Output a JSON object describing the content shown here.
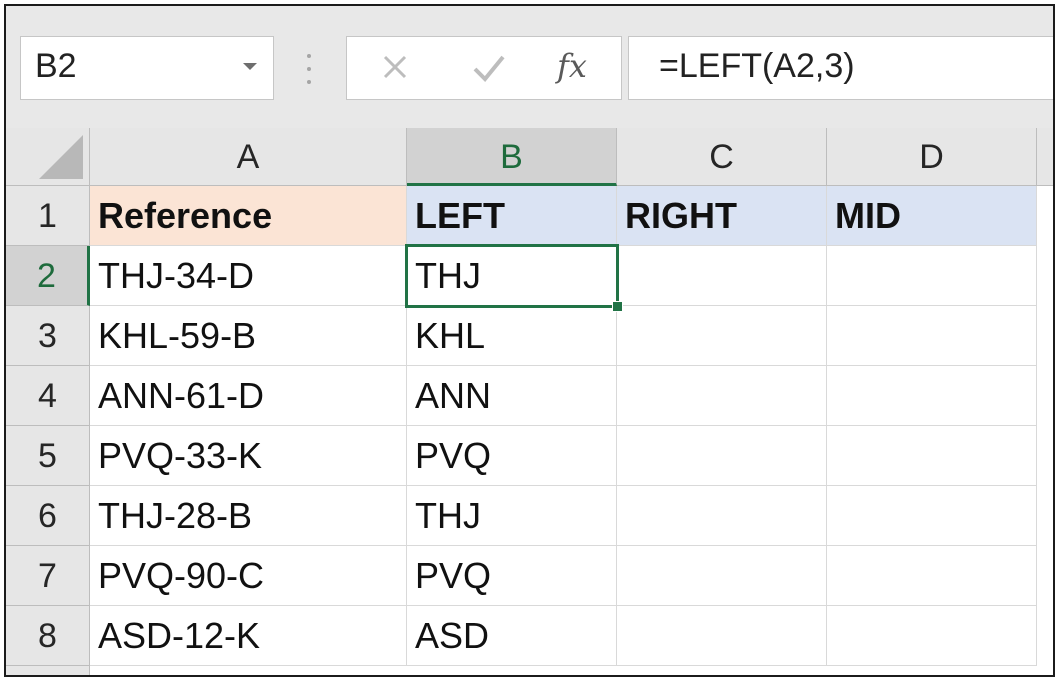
{
  "name_box": {
    "value": "B2"
  },
  "formula_bar": {
    "fx_label": "fx",
    "formula": "=LEFT(A2,3)"
  },
  "columns": [
    "A",
    "B",
    "C",
    "D"
  ],
  "selected_cell": "B2",
  "rows": [
    {
      "row": "1",
      "cells": [
        "Reference",
        "LEFT",
        "RIGHT",
        "MID"
      ]
    },
    {
      "row": "2",
      "cells": [
        "THJ-34-D",
        "THJ",
        "",
        ""
      ]
    },
    {
      "row": "3",
      "cells": [
        "KHL-59-B",
        "KHL",
        "",
        ""
      ]
    },
    {
      "row": "4",
      "cells": [
        "ANN-61-D",
        "ANN",
        "",
        ""
      ]
    },
    {
      "row": "5",
      "cells": [
        "PVQ-33-K",
        "PVQ",
        "",
        ""
      ]
    },
    {
      "row": "6",
      "cells": [
        "THJ-28-B",
        "THJ",
        "",
        ""
      ]
    },
    {
      "row": "7",
      "cells": [
        "PVQ-90-C",
        "PVQ",
        "",
        ""
      ]
    },
    {
      "row": "8",
      "cells": [
        "ASD-12-K",
        "ASD",
        "",
        ""
      ]
    }
  ],
  "colors": {
    "selection": "#217346",
    "header_fill_reference": "#fbe4d5",
    "header_fill_functions": "#dae3f3"
  },
  "icons": [
    "chevron-down-icon",
    "more-vertical-icon",
    "cancel-icon",
    "enter-check-icon",
    "fx-icon",
    "select-all-icon"
  ]
}
